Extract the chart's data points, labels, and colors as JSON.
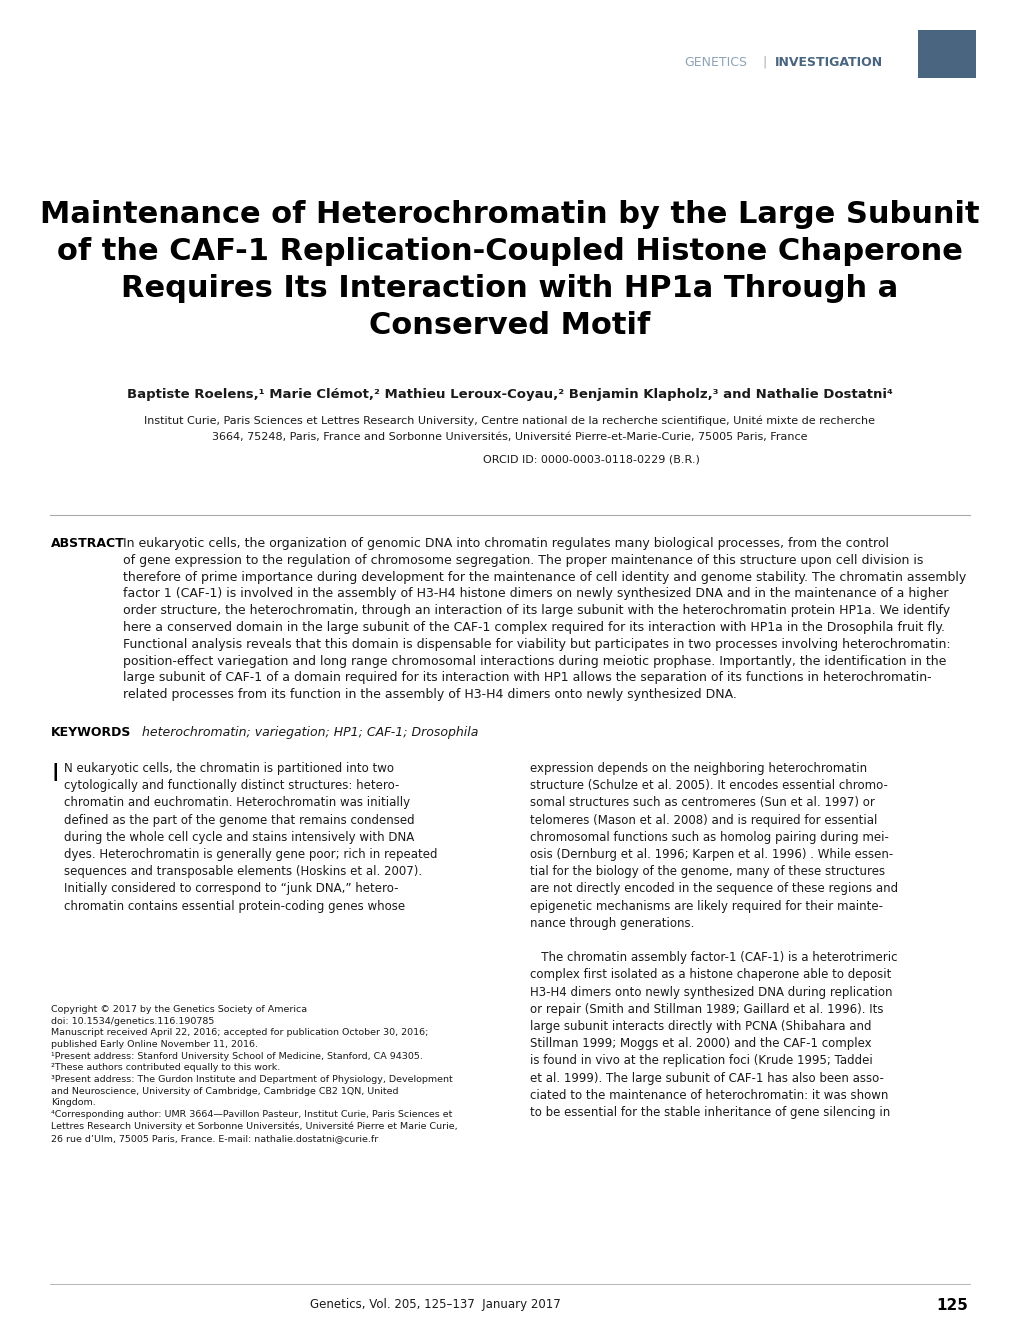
{
  "bg_color": "#ffffff",
  "header_label1": "GENETICS",
  "header_label2": "INVESTIGATION",
  "header_color1": "#8da3b8",
  "header_color2": "#4a6580",
  "header_rect_color": "#4a6580",
  "title": "Maintenance of Heterochromatin by the Large Subunit\nof the CAF-1 Replication-Coupled Histone Chaperone\nRequires Its Interaction with HP1a Through a\nConserved Motif",
  "authors": "Baptiste Roelens,¹ Marie Clémot,² Mathieu Leroux-Coyau,² Benjamin Klapholz,³ and Nathalie Dostatni⁴",
  "affiliation1": "Institut Curie, Paris Sciences et Lettres Research University, Centre national de la recherche scientifique, Unité mixte de recherche",
  "affiliation2": "3664, 75248, Paris, France and Sorbonne Universités, Université Pierre-et-Marie-Curie, 75005 Paris, France",
  "orcid": "ORCID ID: 0000-0003-0118-0229 (B.R.)",
  "abstract_label": "ABSTRACT",
  "abstract_text": "In eukaryotic cells, the organization of genomic DNA into chromatin regulates many biological processes, from the control\nof gene expression to the regulation of chromosome segregation. The proper maintenance of this structure upon cell division is\ntherefore of prime importance during development for the maintenance of cell identity and genome stability. The chromatin assembly\nfactor 1 (CAF-1) is involved in the assembly of H3-H4 histone dimers on newly synthesized DNA and in the maintenance of a higher\norder structure, the heterochromatin, through an interaction of its large subunit with the heterochromatin protein HP1a. We identify\nhere a conserved domain in the large subunit of the CAF-1 complex required for its interaction with HP1a in the Drosophila fruit fly.\nFunctional analysis reveals that this domain is dispensable for viability but participates in two processes involving heterochromatin:\nposition-effect variegation and long range chromosomal interactions during meiotic prophase. Importantly, the identification in the\nlarge subunit of CAF-1 of a domain required for its interaction with HP1 allows the separation of its functions in heterochromatin-\nrelated processes from its function in the assembly of H3-H4 dimers onto newly synthesized DNA.",
  "keywords_label": "KEYWORDS",
  "keywords_text": "heterochromatin; variegation; HP1; CAF-1; Drosophila",
  "body_col1_intro": "N eukaryotic cells, the chromatin is partitioned into two\ncytologically and functionally distinct structures: hetero-\nchromatin and euchromatin. Heterochromatin was initially\ndefined as the part of the genome that remains condensed\nduring the whole cell cycle and stains intensively with DNA\ndyes. Heterochromatin is generally gene poor; rich in repeated\nsequences and transposable elements (Hoskins et al. 2007).\nInitially considered to correspond to “junk DNA,” hetero-\nchromatin contains essential protein-coding genes whose",
  "body_col1_footnotes": "Copyright © 2017 by the Genetics Society of America\ndoi: 10.1534/genetics.116.190785\nManuscript received April 22, 2016; accepted for publication October 30, 2016;\npublished Early Online November 11, 2016.\n¹Present address: Stanford University School of Medicine, Stanford, CA 94305.\n²These authors contributed equally to this work.\n³Present address: The Gurdon Institute and Department of Physiology, Development\nand Neuroscience, University of Cambridge, Cambridge CB2 1QN, United\nKingdom.\n⁴Corresponding author: UMR 3664—Pavillon Pasteur, Institut Curie, Paris Sciences et\nLettres Research University et Sorbonne Universités, Université Pierre et Marie Curie,\n26 rue d’Ulm, 75005 Paris, France. E-mail: nathalie.dostatni@curie.fr",
  "body_col2": "expression depends on the neighboring heterochromatin\nstructure (Schulze et al. 2005). It encodes essential chromo-\nsomal structures such as centromeres (Sun et al. 1997) or\ntelomeres (Mason et al. 2008) and is required for essential\nchromosomal functions such as homolog pairing during mei-\nosis (Dernburg et al. 1996; Karpen et al. 1996) . While essen-\ntial for the biology of the genome, many of these structures\nare not directly encoded in the sequence of these regions and\nepigenetic mechanisms are likely required for their mainte-\nnance through generations.\n\n   The chromatin assembly factor-1 (CAF-1) is a heterotrimeric\ncomplex first isolated as a histone chaperone able to deposit\nH3-H4 dimers onto newly synthesized DNA during replication\nor repair (Smith and Stillman 1989; Gaillard et al. 1996). Its\nlarge subunit interacts directly with PCNA (Shibahara and\nStillman 1999; Moggs et al. 2000) and the CAF-1 complex\nis found in vivo at the replication foci (Krude 1995; Taddei\net al. 1999). The large subunit of CAF-1 has also been asso-\nciated to the maintenance of heterochromatin: it was shown\nto be essential for the stable inheritance of gene silencing in",
  "footer_text": "Genetics, Vol. 205, 125–137  January 2017",
  "footer_page": "125",
  "text_color": "#1a1a1a",
  "sep_line_color": "#aaaaaa"
}
